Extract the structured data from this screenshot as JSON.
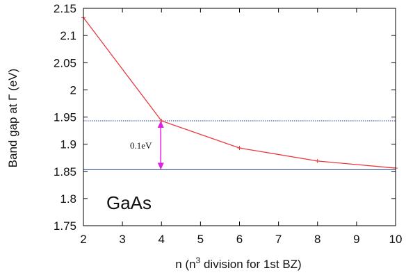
{
  "chart_data": {
    "type": "line",
    "x": [
      2,
      4,
      6,
      8,
      10
    ],
    "series": [
      {
        "values": [
          2.133,
          1.943,
          1.893,
          1.869,
          1.856
        ],
        "color": "#e8383d"
      }
    ],
    "xlabel": "n (n",
    "xlabel_sup": "3",
    "xlabel_rest": " division for 1st BZ)",
    "ylabel": "Band gap at Γ (eV)",
    "xlim": [
      2,
      10
    ],
    "ylim": [
      1.75,
      2.15
    ],
    "xticks": [
      "2",
      "3",
      "4",
      "5",
      "6",
      "7",
      "8",
      "9",
      "10"
    ],
    "yticks": [
      "1.75",
      "1.8",
      "1.85",
      "1.9",
      "1.95",
      "2",
      "2.05",
      "2.1",
      "2.15"
    ],
    "grid": false,
    "annotations": {
      "material": "GaAs",
      "gap_label": "0.1eV",
      "ref_upper": 1.943,
      "ref_lower": 1.853,
      "ref_color": "#1f3f8f",
      "arrow_color": "#e020e0",
      "arrow_x": 4
    }
  }
}
